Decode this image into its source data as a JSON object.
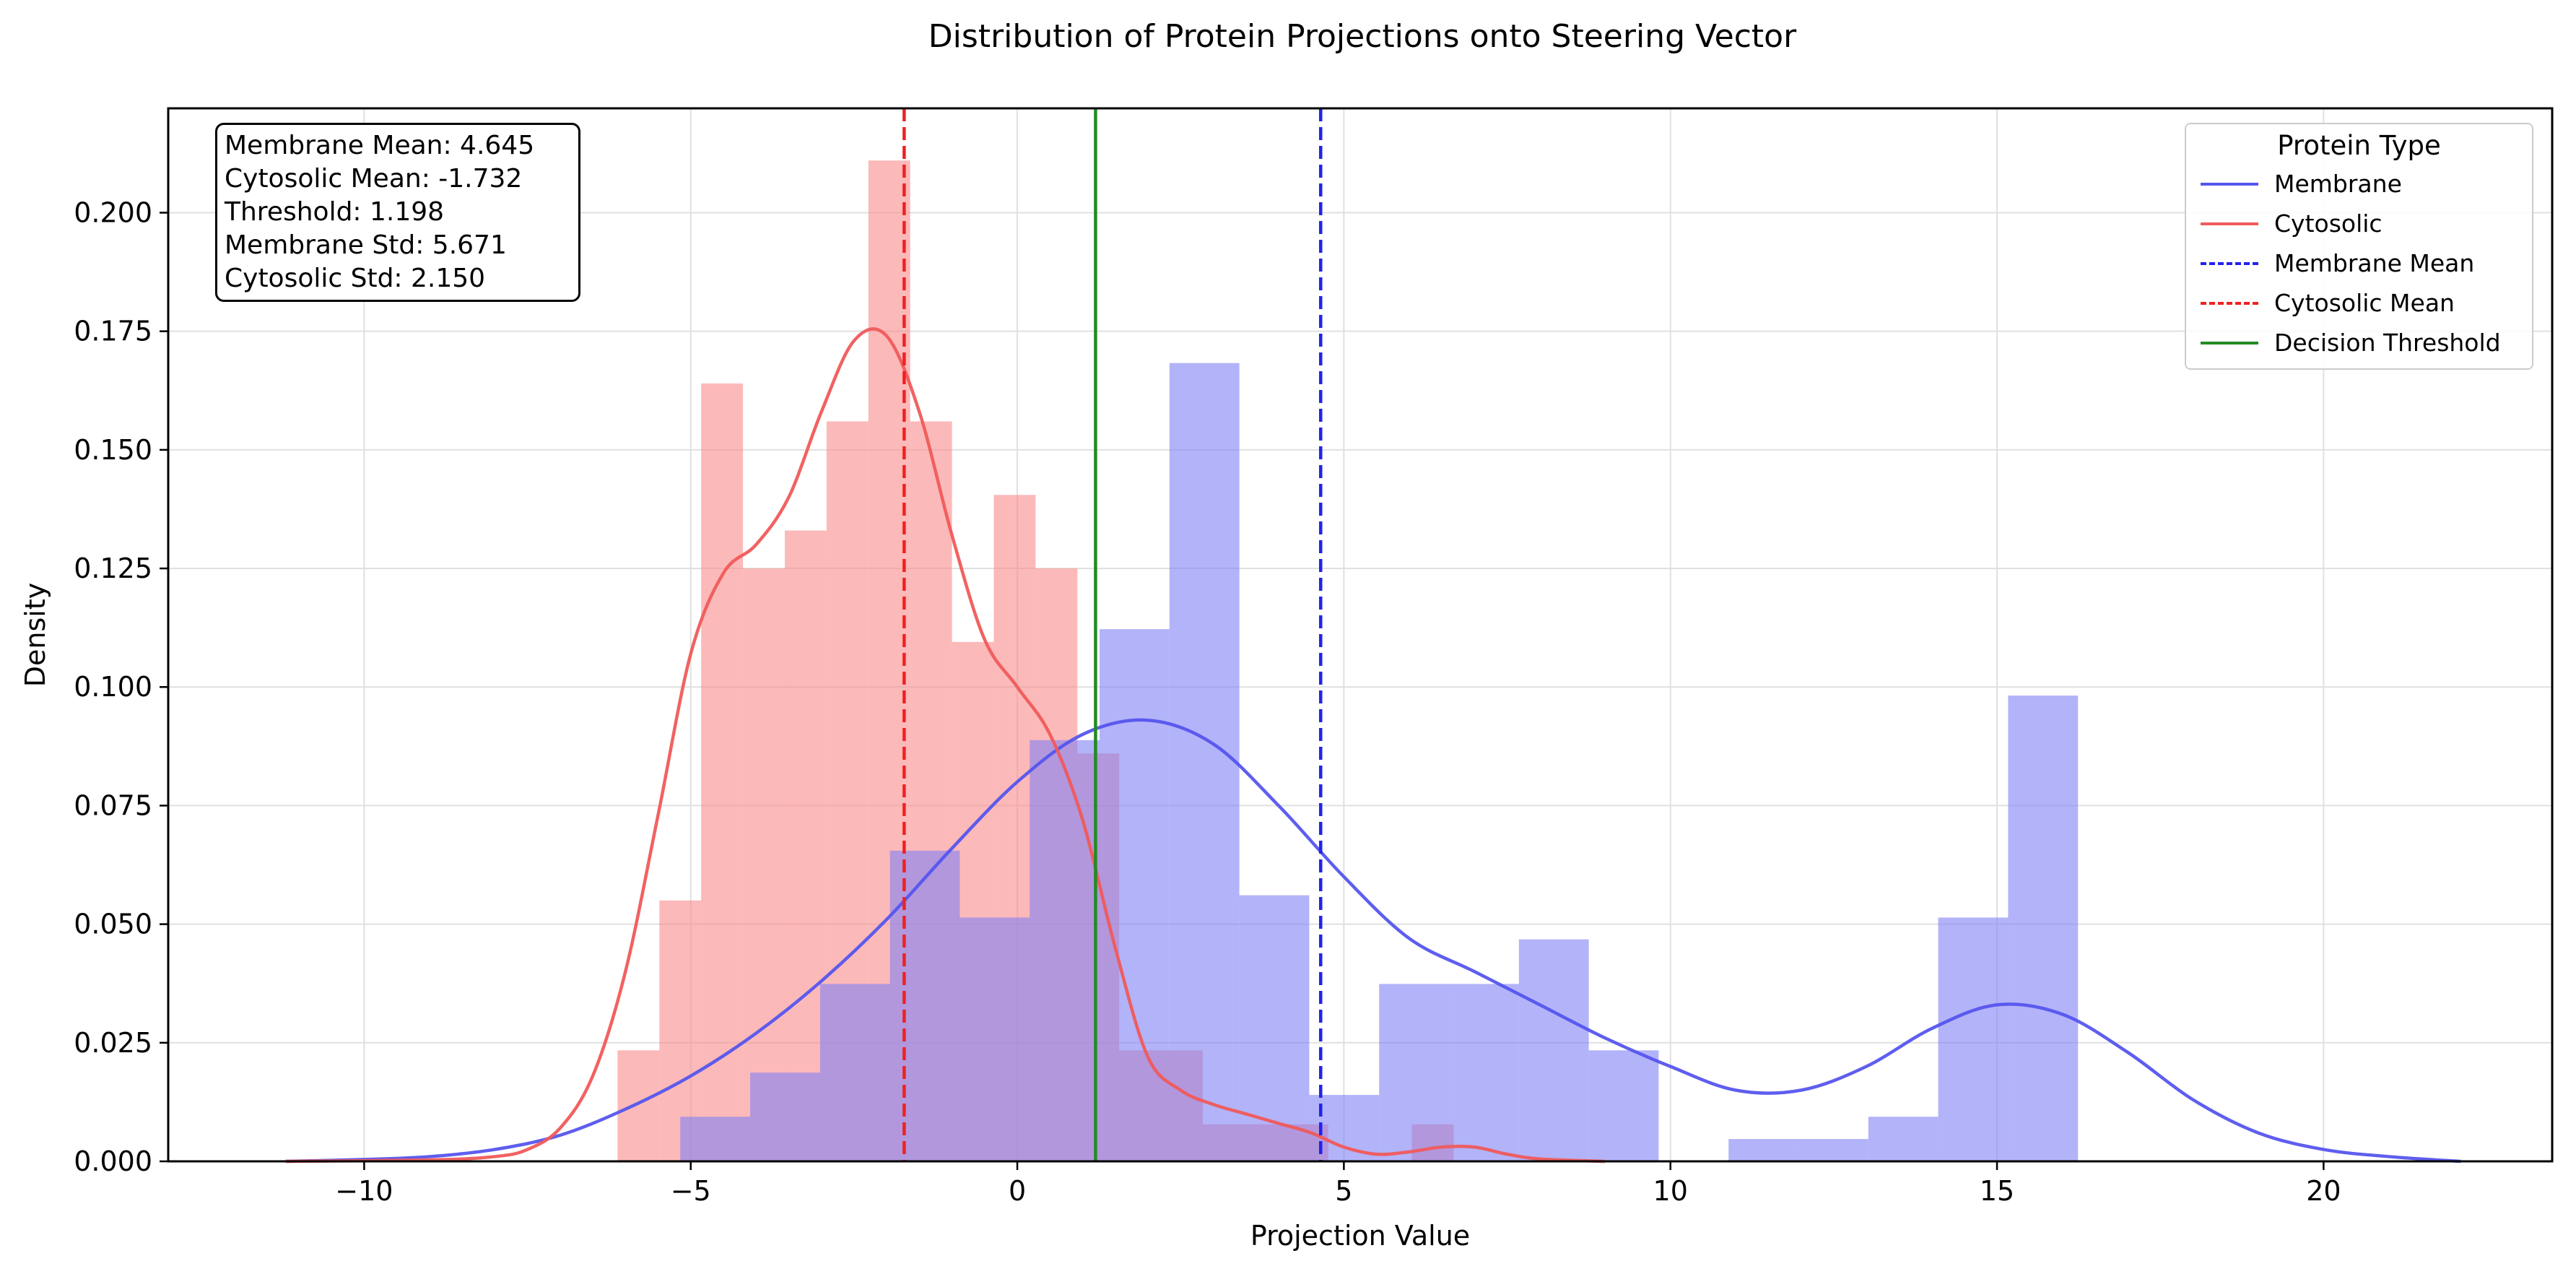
{
  "chart_data": {
    "type": "histogram+kde",
    "title": "Distribution of Protein Projections onto Steering Vector",
    "xlabel": "Projection Value",
    "ylabel": "Density",
    "xlim": [
      -13.0,
      23.5
    ],
    "ylim": [
      0.0,
      0.222
    ],
    "xticks": [
      -10,
      -5,
      0,
      5,
      10,
      15,
      20
    ],
    "xtick_labels": [
      "−10",
      "−5",
      "0",
      "5",
      "10",
      "15",
      "20"
    ],
    "yticks": [
      0.0,
      0.025,
      0.05,
      0.075,
      0.1,
      0.125,
      0.15,
      0.175,
      0.2
    ],
    "ytick_labels": [
      "0.000",
      "0.025",
      "0.050",
      "0.075",
      "0.100",
      "0.125",
      "0.150",
      "0.175",
      "0.200"
    ],
    "grid": true,
    "legend_title": "Protein Type",
    "legend_placement": "top-right",
    "series": [
      {
        "name": "Membrane",
        "color": "#5555ee",
        "hist_color": "#8080f5",
        "bins": [
          [
            -5.16,
            -4.09,
            0.0094
          ],
          [
            -4.09,
            -3.02,
            0.0187
          ],
          [
            -3.02,
            -1.95,
            0.0374
          ],
          [
            -1.95,
            -0.88,
            0.0655
          ],
          [
            -0.88,
            0.19,
            0.0514
          ],
          [
            0.19,
            1.26,
            0.0888
          ],
          [
            1.26,
            2.33,
            0.1122
          ],
          [
            2.33,
            3.4,
            0.1683
          ],
          [
            3.4,
            4.47,
            0.0561
          ],
          [
            4.47,
            5.54,
            0.014
          ],
          [
            5.54,
            6.61,
            0.0374
          ],
          [
            6.61,
            7.68,
            0.0374
          ],
          [
            7.68,
            8.75,
            0.0468
          ],
          [
            8.75,
            9.82,
            0.0234
          ],
          [
            9.82,
            10.89,
            0.0
          ],
          [
            10.89,
            11.96,
            0.0047
          ],
          [
            11.96,
            13.03,
            0.0047
          ],
          [
            13.03,
            14.1,
            0.0094
          ],
          [
            14.1,
            15.17,
            0.0514
          ],
          [
            15.17,
            16.24,
            0.0982
          ]
        ],
        "kde_x": [
          -11.2,
          -10,
          -9,
          -8,
          -7,
          -6,
          -5,
          -4,
          -3,
          -2,
          -1,
          0,
          1,
          2,
          3,
          4,
          5,
          6,
          7,
          8,
          9,
          10,
          11,
          12,
          13,
          14,
          15,
          16,
          17,
          18,
          19,
          20,
          21,
          22.1
        ],
        "kde_y": [
          0.0,
          0.0004,
          0.001,
          0.0025,
          0.0055,
          0.011,
          0.018,
          0.027,
          0.038,
          0.051,
          0.066,
          0.08,
          0.09,
          0.093,
          0.088,
          0.075,
          0.06,
          0.047,
          0.04,
          0.033,
          0.026,
          0.02,
          0.015,
          0.015,
          0.02,
          0.028,
          0.033,
          0.031,
          0.023,
          0.013,
          0.006,
          0.0025,
          0.001,
          0.0
        ]
      },
      {
        "name": "Cytosolic",
        "color": "#f05a5a",
        "hist_color": "#fa8a8a",
        "bins": [
          [
            -6.12,
            -5.48,
            0.0234
          ],
          [
            -5.48,
            -4.84,
            0.055
          ],
          [
            -4.84,
            -4.2,
            0.164
          ],
          [
            -4.2,
            -3.56,
            0.125
          ],
          [
            -3.56,
            -2.92,
            0.133
          ],
          [
            -2.92,
            -2.28,
            0.156
          ],
          [
            -2.28,
            -1.64,
            0.211
          ],
          [
            -1.64,
            -1.0,
            0.156
          ],
          [
            -1.0,
            -0.36,
            0.1095
          ],
          [
            -0.36,
            0.28,
            0.1405
          ],
          [
            0.28,
            0.92,
            0.125
          ],
          [
            0.92,
            1.56,
            0.086
          ],
          [
            1.56,
            2.2,
            0.0234
          ],
          [
            2.2,
            2.84,
            0.0234
          ],
          [
            2.84,
            3.48,
            0.0078
          ],
          [
            3.48,
            4.12,
            0.0078
          ],
          [
            4.12,
            4.76,
            0.0078
          ],
          [
            4.76,
            5.4,
            0.0
          ],
          [
            5.4,
            6.04,
            0.0
          ],
          [
            6.04,
            6.68,
            0.0078
          ]
        ],
        "kde_x": [
          -11.2,
          -9,
          -8,
          -7.5,
          -7,
          -6.5,
          -6,
          -5.5,
          -5,
          -4.5,
          -4,
          -3.5,
          -3,
          -2.5,
          -2,
          -1.5,
          -1,
          -0.5,
          0,
          0.5,
          1,
          1.5,
          2,
          2.5,
          3,
          3.5,
          4,
          4.5,
          5,
          5.5,
          6,
          6.5,
          7,
          7.5,
          8,
          9
        ],
        "kde_y": [
          0.0,
          0.0003,
          0.001,
          0.0025,
          0.007,
          0.018,
          0.04,
          0.073,
          0.107,
          0.124,
          0.13,
          0.14,
          0.158,
          0.173,
          0.174,
          0.158,
          0.132,
          0.11,
          0.1,
          0.09,
          0.072,
          0.045,
          0.022,
          0.015,
          0.012,
          0.01,
          0.008,
          0.006,
          0.003,
          0.0015,
          0.002,
          0.003,
          0.003,
          0.0015,
          0.0005,
          0.0
        ]
      }
    ],
    "vlines": [
      {
        "name": "Membrane Mean",
        "x": 4.645,
        "color": "#2222ee",
        "style": "dashed"
      },
      {
        "name": "Cytosolic Mean",
        "x": -1.732,
        "color": "#ee2222",
        "style": "dashed"
      },
      {
        "name": "Decision Threshold",
        "x": 1.198,
        "color": "#228b22",
        "style": "solid"
      }
    ],
    "annotations": [
      "Membrane Mean: 4.645",
      "Cytosolic Mean: -1.732",
      "Threshold: 1.198",
      "Membrane Std: 5.671",
      "Cytosolic Std: 2.150"
    ]
  },
  "legend": {
    "title": "Protein Type",
    "items": [
      {
        "label": "Membrane",
        "color": "#5555ee",
        "style": "solid"
      },
      {
        "label": "Cytosolic",
        "color": "#f05a5a",
        "style": "solid"
      },
      {
        "label": "Membrane Mean",
        "color": "#2222ee",
        "style": "dashed"
      },
      {
        "label": "Cytosolic Mean",
        "color": "#ee2222",
        "style": "dashed"
      },
      {
        "label": "Decision Threshold",
        "color": "#228b22",
        "style": "solid"
      }
    ]
  }
}
